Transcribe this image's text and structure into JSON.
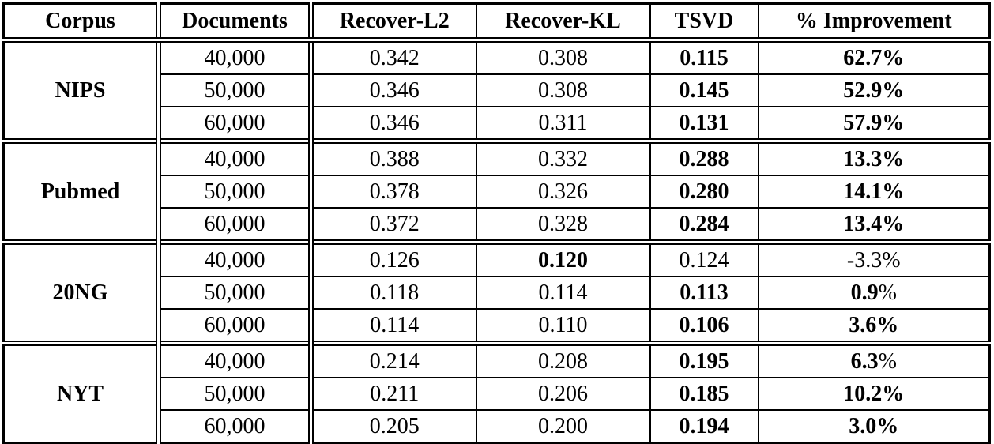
{
  "page": {
    "background_color": "#ffffff",
    "text_color": "#000000",
    "border_color": "#000000"
  },
  "table": {
    "columns": [
      "Corpus",
      "Documents",
      "Recover-L2",
      "Recover-KL",
      "TSVD",
      "% Improvement"
    ],
    "groups": [
      {
        "corpus": "NIPS",
        "rows": [
          {
            "documents": "40,000",
            "recover_l2": {
              "text": "0.342",
              "bold": false
            },
            "recover_kl": {
              "text": "0.308",
              "bold": false
            },
            "tsvd": {
              "text": "0.115",
              "bold": true
            },
            "improvement": {
              "text": "62.7%",
              "bold": true,
              "percent_regular": false
            }
          },
          {
            "documents": "50,000",
            "recover_l2": {
              "text": "0.346",
              "bold": false
            },
            "recover_kl": {
              "text": "0.308",
              "bold": false
            },
            "tsvd": {
              "text": "0.145",
              "bold": true
            },
            "improvement": {
              "text": "52.9%",
              "bold": true,
              "percent_regular": false
            }
          },
          {
            "documents": "60,000",
            "recover_l2": {
              "text": "0.346",
              "bold": false
            },
            "recover_kl": {
              "text": "0.311",
              "bold": false
            },
            "tsvd": {
              "text": "0.131",
              "bold": true
            },
            "improvement": {
              "text": "57.9%",
              "bold": true,
              "percent_regular": false
            }
          }
        ]
      },
      {
        "corpus": "Pubmed",
        "rows": [
          {
            "documents": "40,000",
            "recover_l2": {
              "text": "0.388",
              "bold": false
            },
            "recover_kl": {
              "text": "0.332",
              "bold": false
            },
            "tsvd": {
              "text": "0.288",
              "bold": true
            },
            "improvement": {
              "text": "13.3%",
              "bold": true,
              "percent_regular": false
            }
          },
          {
            "documents": "50,000",
            "recover_l2": {
              "text": "0.378",
              "bold": false
            },
            "recover_kl": {
              "text": "0.326",
              "bold": false
            },
            "tsvd": {
              "text": "0.280",
              "bold": true
            },
            "improvement": {
              "text": "14.1%",
              "bold": true,
              "percent_regular": false
            }
          },
          {
            "documents": "60,000",
            "recover_l2": {
              "text": "0.372",
              "bold": false
            },
            "recover_kl": {
              "text": "0.328",
              "bold": false
            },
            "tsvd": {
              "text": "0.284",
              "bold": true
            },
            "improvement": {
              "text": "13.4%",
              "bold": true,
              "percent_regular": false
            }
          }
        ]
      },
      {
        "corpus": "20NG",
        "rows": [
          {
            "documents": "40,000",
            "recover_l2": {
              "text": "0.126",
              "bold": false
            },
            "recover_kl": {
              "text": "0.120",
              "bold": true
            },
            "tsvd": {
              "text": "0.124",
              "bold": false
            },
            "improvement": {
              "text": "-3.3%",
              "bold": false,
              "percent_regular": false
            }
          },
          {
            "documents": "50,000",
            "recover_l2": {
              "text": "0.118",
              "bold": false
            },
            "recover_kl": {
              "text": "0.114",
              "bold": false
            },
            "tsvd": {
              "text": "0.113",
              "bold": true
            },
            "improvement": {
              "text": "0.9%",
              "bold": true,
              "percent_regular": true
            }
          },
          {
            "documents": "60,000",
            "recover_l2": {
              "text": "0.114",
              "bold": false
            },
            "recover_kl": {
              "text": "0.110",
              "bold": false
            },
            "tsvd": {
              "text": "0.106",
              "bold": true
            },
            "improvement": {
              "text": "3.6%",
              "bold": true,
              "percent_regular": false
            }
          }
        ]
      },
      {
        "corpus": "NYT",
        "rows": [
          {
            "documents": "40,000",
            "recover_l2": {
              "text": "0.214",
              "bold": false
            },
            "recover_kl": {
              "text": "0.208",
              "bold": false
            },
            "tsvd": {
              "text": "0.195",
              "bold": true
            },
            "improvement": {
              "text": "6.3%",
              "bold": true,
              "percent_regular": true
            }
          },
          {
            "documents": "50,000",
            "recover_l2": {
              "text": "0.211",
              "bold": false
            },
            "recover_kl": {
              "text": "0.206",
              "bold": false
            },
            "tsvd": {
              "text": "0.185",
              "bold": true
            },
            "improvement": {
              "text": "10.2%",
              "bold": true,
              "percent_regular": false
            }
          },
          {
            "documents": "60,000",
            "recover_l2": {
              "text": "0.205",
              "bold": false
            },
            "recover_kl": {
              "text": "0.200",
              "bold": false
            },
            "tsvd": {
              "text": "0.194",
              "bold": true
            },
            "improvement": {
              "text": "3.0%",
              "bold": true,
              "percent_regular": false
            }
          }
        ]
      }
    ]
  }
}
